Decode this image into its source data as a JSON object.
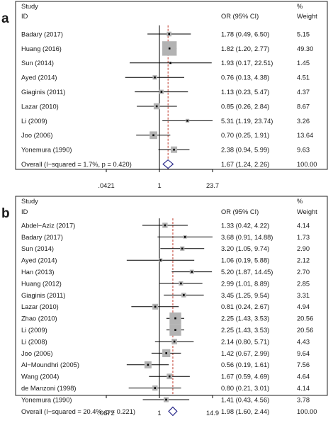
{
  "chart_data": [
    {
      "type": "forest",
      "panel_label": "a",
      "headers": {
        "study": "Study",
        "id": "ID",
        "effect": "OR (95% CI)",
        "pct": "%",
        "weight": "Weight"
      },
      "x_scale": "log",
      "x_ticks": [
        {
          "value": 0.0421,
          "label": ".0421"
        },
        {
          "value": 1,
          "label": "1"
        },
        {
          "value": 23.7,
          "label": "23.7"
        }
      ],
      "xlim": [
        0.0421,
        23.7
      ],
      "null_line": 1,
      "pooled_line": 1.67,
      "studies": [
        {
          "name": "Badary (2017)",
          "or": 1.78,
          "lo": 0.49,
          "hi": 6.5,
          "text": "1.78 (0.49, 6.50)",
          "weight": "5.15"
        },
        {
          "name": "Huang (2016)",
          "or": 1.82,
          "lo": 1.2,
          "hi": 2.77,
          "text": "1.82 (1.20, 2.77)",
          "weight": "49.30"
        },
        {
          "name": "Sun (2014)",
          "or": 1.93,
          "lo": 0.17,
          "hi": 22.51,
          "text": "1.93 (0.17, 22.51)",
          "weight": "1.45"
        },
        {
          "name": "Ayed (2014)",
          "or": 0.76,
          "lo": 0.13,
          "hi": 4.38,
          "text": "0.76 (0.13, 4.38)",
          "weight": "4.51"
        },
        {
          "name": "Giaginis (2011)",
          "or": 1.13,
          "lo": 0.23,
          "hi": 5.47,
          "text": "1.13 (0.23, 5.47)",
          "weight": "4.37"
        },
        {
          "name": "Lazar (2010)",
          "or": 0.85,
          "lo": 0.26,
          "hi": 2.84,
          "text": "0.85 (0.26, 2.84)",
          "weight": "8.67"
        },
        {
          "name": "Li (2009)",
          "or": 5.31,
          "lo": 1.19,
          "hi": 23.74,
          "text": "5.31 (1.19, 23.74)",
          "weight": "3.26"
        },
        {
          "name": "Joo (2006)",
          "or": 0.7,
          "lo": 0.25,
          "hi": 1.91,
          "text": "0.70 (0.25, 1.91)",
          "weight": "13.64"
        },
        {
          "name": "Yonemura (1990)",
          "or": 2.38,
          "lo": 0.94,
          "hi": 5.99,
          "text": "2.38 (0.94, 5.99)",
          "weight": "9.63"
        }
      ],
      "overall": {
        "label": "Overall  (I−squared = 1.7%, p = 0.420)",
        "or": 1.67,
        "lo": 1.24,
        "hi": 2.26,
        "text": "1.67 (1.24, 2.26)",
        "weight": "100.00"
      }
    },
    {
      "type": "forest",
      "panel_label": "b",
      "headers": {
        "study": "Study",
        "id": "ID",
        "effect": "OR (95% CI)",
        "pct": "%",
        "weight": "Weight"
      },
      "x_scale": "log",
      "x_ticks": [
        {
          "value": 0.0672,
          "label": ".0672"
        },
        {
          "value": 1,
          "label": "1"
        },
        {
          "value": 14.9,
          "label": "14.9"
        }
      ],
      "xlim": [
        0.0672,
        14.9
      ],
      "null_line": 1,
      "pooled_line": 1.98,
      "studies": [
        {
          "name": "Abdel−Aziz (2017)",
          "or": 1.33,
          "lo": 0.42,
          "hi": 4.22,
          "text": "1.33 (0.42, 4.22)",
          "weight": "4.14"
        },
        {
          "name": "Badary (2017)",
          "or": 3.68,
          "lo": 0.91,
          "hi": 14.88,
          "text": "3.68 (0.91, 14.88)",
          "weight": "1.73"
        },
        {
          "name": "Sun (2014)",
          "or": 3.2,
          "lo": 1.05,
          "hi": 9.74,
          "text": "3.20 (1.05, 9.74)",
          "weight": "2.90"
        },
        {
          "name": "Ayed (2014)",
          "or": 1.06,
          "lo": 0.19,
          "hi": 5.88,
          "text": "1.06 (0.19, 5.88)",
          "weight": "2.12"
        },
        {
          "name": "Han (2013)",
          "or": 5.2,
          "lo": 1.87,
          "hi": 14.45,
          "text": "5.20 (1.87, 14.45)",
          "weight": "2.70"
        },
        {
          "name": "Huang (2012)",
          "or": 2.99,
          "lo": 1.01,
          "hi": 8.89,
          "text": "2.99 (1.01, 8.89)",
          "weight": "2.85"
        },
        {
          "name": "Giaginis (2011)",
          "or": 3.45,
          "lo": 1.25,
          "hi": 9.54,
          "text": "3.45 (1.25, 9.54)",
          "weight": "3.31"
        },
        {
          "name": "Lazar (2010)",
          "or": 0.81,
          "lo": 0.24,
          "hi": 2.67,
          "text": "0.81 (0.24, 2.67)",
          "weight": "4.94"
        },
        {
          "name": "Zhao (2010)",
          "or": 2.25,
          "lo": 1.43,
          "hi": 3.53,
          "text": "2.25 (1.43, 3.53)",
          "weight": "20.56"
        },
        {
          "name": "Li (2009)",
          "or": 2.25,
          "lo": 1.43,
          "hi": 3.53,
          "text": "2.25 (1.43, 3.53)",
          "weight": "20.56"
        },
        {
          "name": "Li (2008)",
          "or": 2.14,
          "lo": 0.8,
          "hi": 5.71,
          "text": "2.14 (0.80, 5.71)",
          "weight": "4.43"
        },
        {
          "name": "Joo (2006)",
          "or": 1.42,
          "lo": 0.67,
          "hi": 2.99,
          "text": "1.42 (0.67, 2.99)",
          "weight": "9.64"
        },
        {
          "name": "Al−Moundhri (2005)",
          "or": 0.56,
          "lo": 0.19,
          "hi": 1.61,
          "text": "0.56 (0.19, 1.61)",
          "weight": "7.56"
        },
        {
          "name": "Wang (2004)",
          "or": 1.67,
          "lo": 0.59,
          "hi": 4.69,
          "text": "1.67 (0.59, 4.69)",
          "weight": "4.64"
        },
        {
          "name": "de Manzoni (1998)",
          "or": 0.8,
          "lo": 0.21,
          "hi": 3.01,
          "text": "0.80 (0.21, 3.01)",
          "weight": "4.14"
        },
        {
          "name": "Yonemura (1990)",
          "or": 1.41,
          "lo": 0.43,
          "hi": 4.56,
          "text": "1.41 (0.43, 4.56)",
          "weight": "3.78"
        }
      ],
      "overall": {
        "label": "Overall  (I−squared = 20.4%, p = 0.221)",
        "or": 1.98,
        "lo": 1.6,
        "hi": 2.44,
        "text": "1.98 (1.60, 2.44)",
        "weight": "100.00"
      }
    }
  ],
  "colors": {
    "border": "#222222",
    "text": "#1a1a1a",
    "ci_line": "#000000",
    "weight_box": "#b3b3b3",
    "pooled_line": "#c0392b",
    "diamond": "#2a2a8a"
  }
}
